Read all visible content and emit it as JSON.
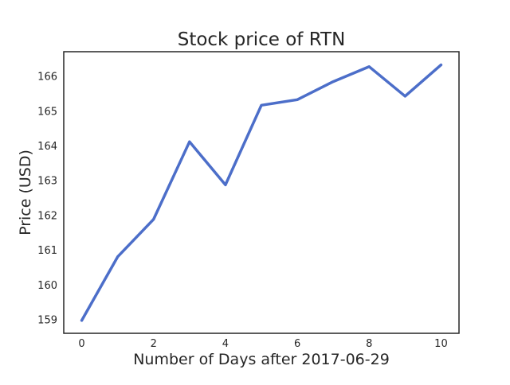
{
  "chart_data": {
    "type": "line",
    "title": "Stock price of RTN",
    "xlabel": "Number of Days after 2017-06-29",
    "ylabel": "Price (USD)",
    "xlim": [
      -0.5,
      10.5
    ],
    "ylim": [
      158.6,
      166.7
    ],
    "xticks": [
      0,
      2,
      4,
      6,
      8,
      10
    ],
    "yticks": [
      159,
      160,
      161,
      162,
      163,
      164,
      165,
      166
    ],
    "grid": false,
    "legend": "none",
    "series": [
      {
        "color": "#4c6ec9",
        "x": [
          0,
          1,
          2,
          3,
          4,
          5,
          6,
          7,
          8,
          9,
          10
        ],
        "y": [
          158.97,
          160.8,
          161.88,
          164.11,
          162.87,
          165.16,
          165.32,
          165.84,
          166.27,
          165.42,
          166.32
        ]
      }
    ]
  }
}
